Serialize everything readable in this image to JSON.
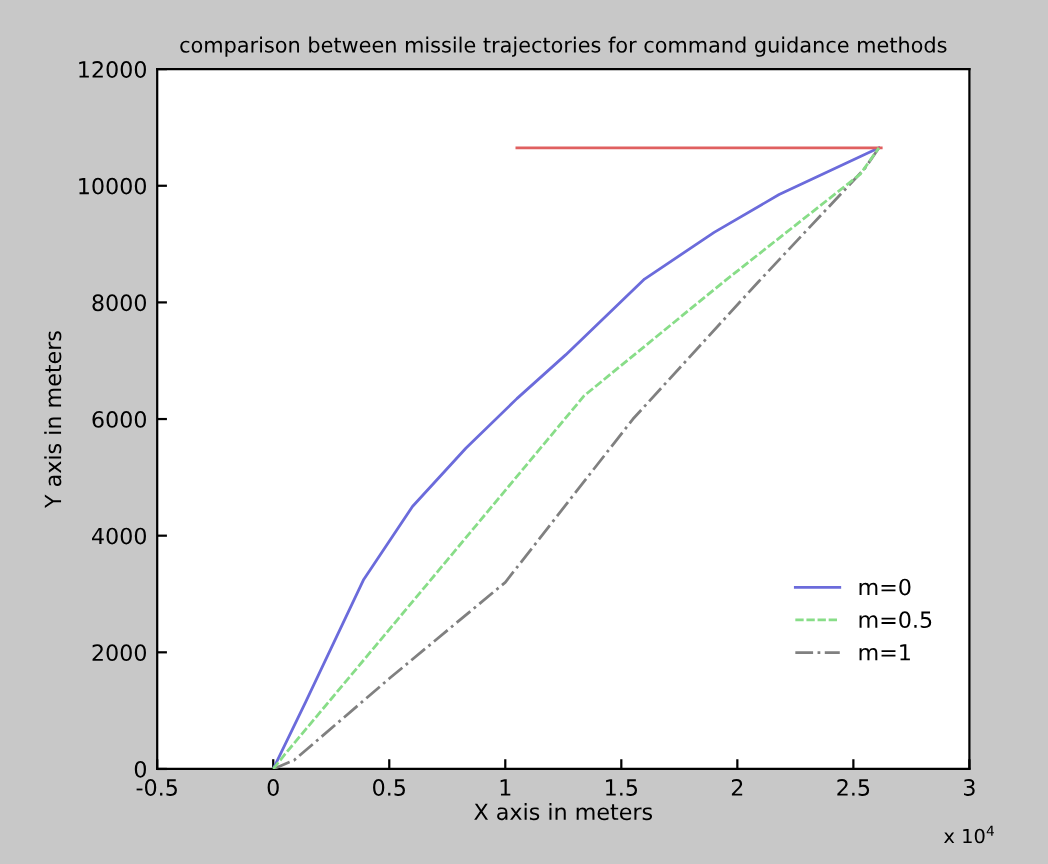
{
  "chart_data": {
    "type": "line",
    "title": "comparison between missile trajectories for command guidance methods",
    "xlabel": "X axis in meters",
    "ylabel": "Y axis in meters",
    "series": [
      {
        "name": "m=0",
        "color": "#6b6bdb",
        "line_style": "solid",
        "x": [
          0,
          0.14,
          0.39,
          0.6,
          0.83,
          1.05,
          1.26,
          1.6,
          1.9,
          2.18,
          2.61
        ],
        "values": [
          0,
          1150,
          3250,
          4500,
          5500,
          6350,
          7100,
          8400,
          9200,
          9850,
          10650
        ]
      },
      {
        "name": "m=0.5",
        "color": "#88dd88",
        "line_style": "dashed",
        "x": [
          0,
          0.05,
          0.67,
          1.34,
          1.94,
          2.53,
          2.61
        ],
        "values": [
          0,
          250,
          3200,
          6400,
          8350,
          10200,
          10650
        ]
      },
      {
        "name": "m=1",
        "color": "#808080",
        "line_style": "dashdot",
        "x": [
          0,
          0.09,
          0.5,
          1.0,
          1.55,
          2.09,
          2.55,
          2.61
        ],
        "values": [
          0,
          150,
          1550,
          3200,
          6000,
          8350,
          10300,
          10650
        ]
      },
      {
        "color": "#e06060",
        "line_style": "solid",
        "x": [
          1.05,
          2.62
        ],
        "values": [
          10650,
          10650
        ]
      }
    ],
    "xlim": [
      -0.5,
      3
    ],
    "xticks": [
      -0.5,
      0,
      0.5,
      1,
      1.5,
      2,
      2.5,
      3
    ],
    "ylim": [
      0,
      12000
    ],
    "yticks": [
      0,
      2000,
      4000,
      6000,
      8000,
      10000,
      12000
    ],
    "annotations": [
      "x 10$^{4}$"
    ],
    "grid": false,
    "legend": "lower right",
    "marker": "none"
  }
}
